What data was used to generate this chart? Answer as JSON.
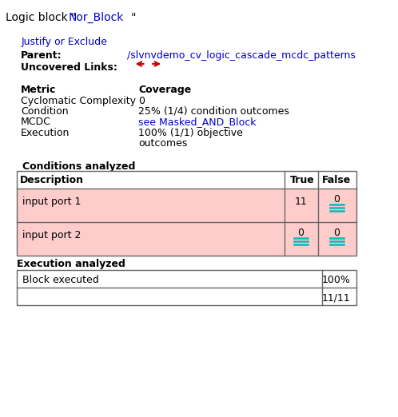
{
  "title_prefix": "Logic block \"",
  "title_link": "Nor_Block",
  "title_suffix": "\"",
  "justify_link": "Justify or Exclude",
  "parent_label": "Parent:",
  "parent_link": "/slvnvdemo_cv_logic_cascade_mcdc_patterns",
  "uncovered_label": "Uncovered Links:",
  "metrics": [
    {
      "name": "Cyclomatic Complexity",
      "value": "0",
      "is_link": false
    },
    {
      "name": "Condition",
      "value": "25% (1/4) condition outcomes",
      "is_link": false
    },
    {
      "name": "MCDC",
      "value": "see Masked_AND_Block",
      "is_link": true
    },
    {
      "name": "Execution",
      "value1": "100% (1/1) objective",
      "value2": "outcomes",
      "is_link": false
    }
  ],
  "conditions_title": "Conditions analyzed",
  "conditions_headers": [
    "Description",
    "True",
    "False"
  ],
  "conditions_rows": [
    {
      "desc": "input port 1",
      "true_val": "11",
      "false_val": "0",
      "true_link": false,
      "false_link": true,
      "bg": "#ffcccc"
    },
    {
      "desc": "input port 2",
      "true_val": "0",
      "false_val": "0",
      "true_link": true,
      "false_link": true,
      "bg": "#ffcccc"
    }
  ],
  "execution_title": "Execution analyzed",
  "execution_rows": [
    {
      "desc": "Block executed",
      "value": "100%"
    },
    {
      "desc": "",
      "value": "11/11"
    }
  ],
  "bg_color": "#ffffff",
  "link_color": "#0000cc",
  "text_color": "#000000",
  "arrow_color": "#cc0000",
  "cyan_color": "#00bbbb"
}
